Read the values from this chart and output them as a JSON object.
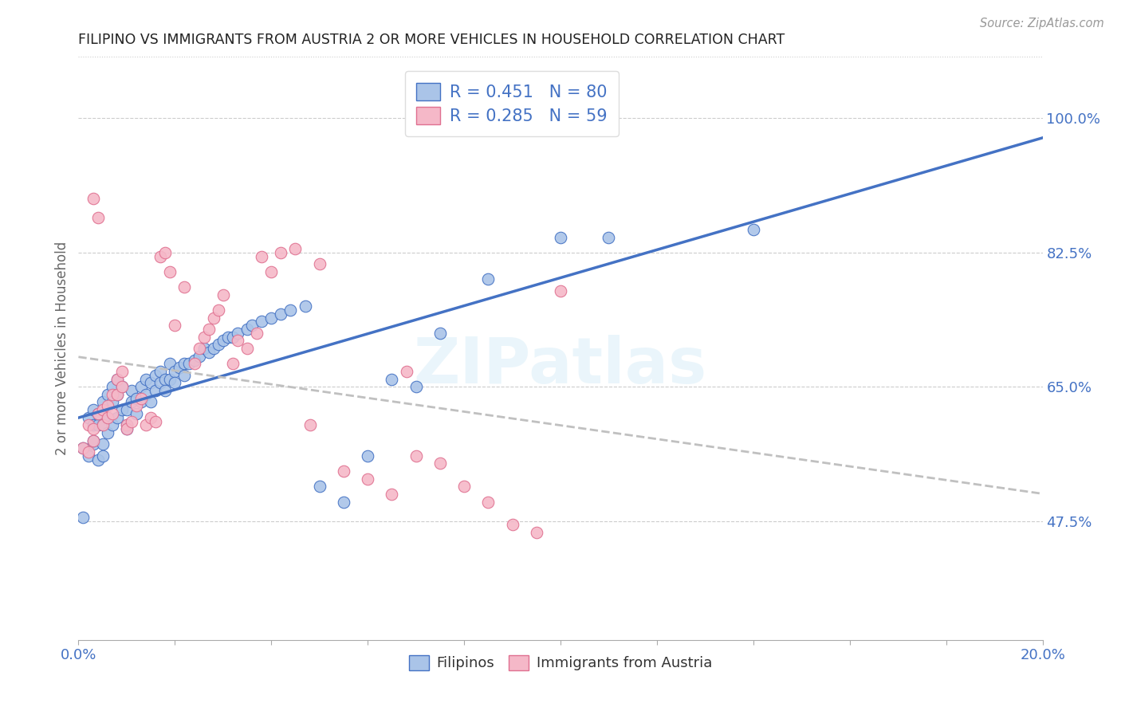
{
  "title": "FILIPINO VS IMMIGRANTS FROM AUSTRIA 2 OR MORE VEHICLES IN HOUSEHOLD CORRELATION CHART",
  "source": "Source: ZipAtlas.com",
  "ylabel": "2 or more Vehicles in Household",
  "xlim": [
    0.0,
    0.2
  ],
  "ylim": [
    0.32,
    1.08
  ],
  "ytick_labels_shown": [
    "47.5%",
    "65.0%",
    "82.5%",
    "100.0%"
  ],
  "ytick_positions_shown": [
    0.475,
    0.65,
    0.825,
    1.0
  ],
  "background_color": "#ffffff",
  "watermark_text": "ZIPatlas",
  "filipino_face_color": "#aac4e8",
  "filipino_edge_color": "#4472c4",
  "austria_face_color": "#f5b8c8",
  "austria_edge_color": "#e07090",
  "filipino_line_color": "#4472c4",
  "austria_line_color": "#c0c0c0",
  "filipino_R": 0.451,
  "filipino_N": 80,
  "austria_R": 0.285,
  "austria_N": 59,
  "legend_label_filipino": "Filipinos",
  "legend_label_austria": "Immigrants from Austria",
  "title_color": "#222222",
  "axis_tick_color": "#4472c4",
  "filipino_scatter_x": [
    0.001,
    0.002,
    0.002,
    0.003,
    0.003,
    0.003,
    0.003,
    0.004,
    0.004,
    0.004,
    0.005,
    0.005,
    0.005,
    0.005,
    0.006,
    0.006,
    0.006,
    0.007,
    0.007,
    0.007,
    0.008,
    0.008,
    0.008,
    0.009,
    0.009,
    0.01,
    0.01,
    0.01,
    0.011,
    0.011,
    0.012,
    0.012,
    0.013,
    0.013,
    0.014,
    0.014,
    0.015,
    0.015,
    0.016,
    0.016,
    0.017,
    0.017,
    0.018,
    0.018,
    0.019,
    0.019,
    0.02,
    0.02,
    0.021,
    0.022,
    0.022,
    0.023,
    0.024,
    0.025,
    0.026,
    0.027,
    0.028,
    0.029,
    0.03,
    0.031,
    0.032,
    0.033,
    0.035,
    0.036,
    0.038,
    0.04,
    0.042,
    0.044,
    0.047,
    0.05,
    0.055,
    0.06,
    0.065,
    0.07,
    0.075,
    0.085,
    0.1,
    0.11,
    0.14,
    0.001
  ],
  "filipino_scatter_y": [
    0.57,
    0.61,
    0.56,
    0.62,
    0.6,
    0.575,
    0.58,
    0.6,
    0.555,
    0.615,
    0.63,
    0.6,
    0.575,
    0.56,
    0.64,
    0.61,
    0.59,
    0.65,
    0.63,
    0.6,
    0.66,
    0.64,
    0.61,
    0.65,
    0.62,
    0.62,
    0.6,
    0.595,
    0.645,
    0.63,
    0.635,
    0.615,
    0.65,
    0.63,
    0.66,
    0.64,
    0.655,
    0.63,
    0.665,
    0.645,
    0.67,
    0.655,
    0.66,
    0.645,
    0.68,
    0.66,
    0.67,
    0.655,
    0.675,
    0.68,
    0.665,
    0.68,
    0.685,
    0.69,
    0.7,
    0.695,
    0.7,
    0.705,
    0.71,
    0.715,
    0.715,
    0.72,
    0.725,
    0.73,
    0.735,
    0.74,
    0.745,
    0.75,
    0.755,
    0.52,
    0.5,
    0.56,
    0.66,
    0.65,
    0.72,
    0.79,
    0.845,
    0.845,
    0.855,
    0.48
  ],
  "austria_scatter_x": [
    0.001,
    0.002,
    0.002,
    0.003,
    0.003,
    0.004,
    0.005,
    0.005,
    0.006,
    0.006,
    0.007,
    0.007,
    0.008,
    0.008,
    0.009,
    0.009,
    0.01,
    0.01,
    0.011,
    0.012,
    0.013,
    0.014,
    0.015,
    0.016,
    0.017,
    0.018,
    0.019,
    0.02,
    0.022,
    0.024,
    0.025,
    0.026,
    0.027,
    0.028,
    0.029,
    0.03,
    0.032,
    0.033,
    0.035,
    0.037,
    0.038,
    0.04,
    0.042,
    0.045,
    0.048,
    0.05,
    0.055,
    0.06,
    0.065,
    0.068,
    0.07,
    0.075,
    0.08,
    0.085,
    0.09,
    0.095,
    0.1,
    0.003,
    0.004
  ],
  "austria_scatter_y": [
    0.57,
    0.6,
    0.565,
    0.595,
    0.58,
    0.615,
    0.62,
    0.6,
    0.625,
    0.61,
    0.64,
    0.615,
    0.66,
    0.64,
    0.67,
    0.65,
    0.6,
    0.595,
    0.605,
    0.625,
    0.635,
    0.6,
    0.61,
    0.605,
    0.82,
    0.825,
    0.8,
    0.73,
    0.78,
    0.68,
    0.7,
    0.715,
    0.725,
    0.74,
    0.75,
    0.77,
    0.68,
    0.71,
    0.7,
    0.72,
    0.82,
    0.8,
    0.825,
    0.83,
    0.6,
    0.81,
    0.54,
    0.53,
    0.51,
    0.67,
    0.56,
    0.55,
    0.52,
    0.5,
    0.47,
    0.46,
    0.775,
    0.895,
    0.87
  ],
  "grid_color": "#cccccc",
  "grid_linestyle": "--",
  "grid_linewidth": 0.8
}
